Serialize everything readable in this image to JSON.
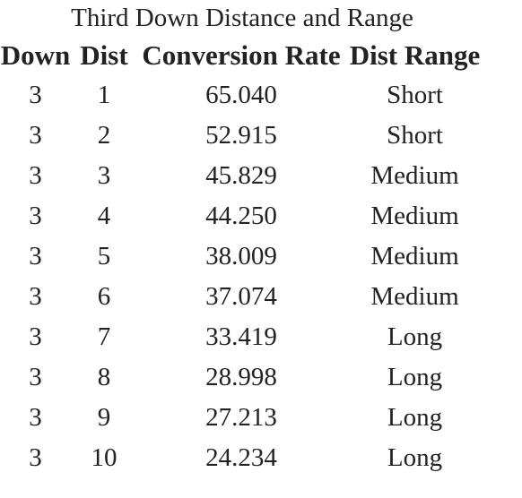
{
  "table": {
    "caption": "Third Down Distance and Range",
    "headers": [
      "Down",
      "Dist",
      "Conversion Rate",
      "Dist Range"
    ],
    "rows": [
      [
        "3",
        "1",
        "65.040",
        "Short"
      ],
      [
        "3",
        "2",
        "52.915",
        "Short"
      ],
      [
        "3",
        "3",
        "45.829",
        "Medium"
      ],
      [
        "3",
        "4",
        "44.250",
        "Medium"
      ],
      [
        "3",
        "5",
        "38.009",
        "Medium"
      ],
      [
        "3",
        "6",
        "37.074",
        "Medium"
      ],
      [
        "3",
        "7",
        "33.419",
        "Long"
      ],
      [
        "3",
        "8",
        "28.998",
        "Long"
      ],
      [
        "3",
        "9",
        "27.213",
        "Long"
      ],
      [
        "3",
        "10",
        "24.234",
        "Long"
      ]
    ]
  }
}
